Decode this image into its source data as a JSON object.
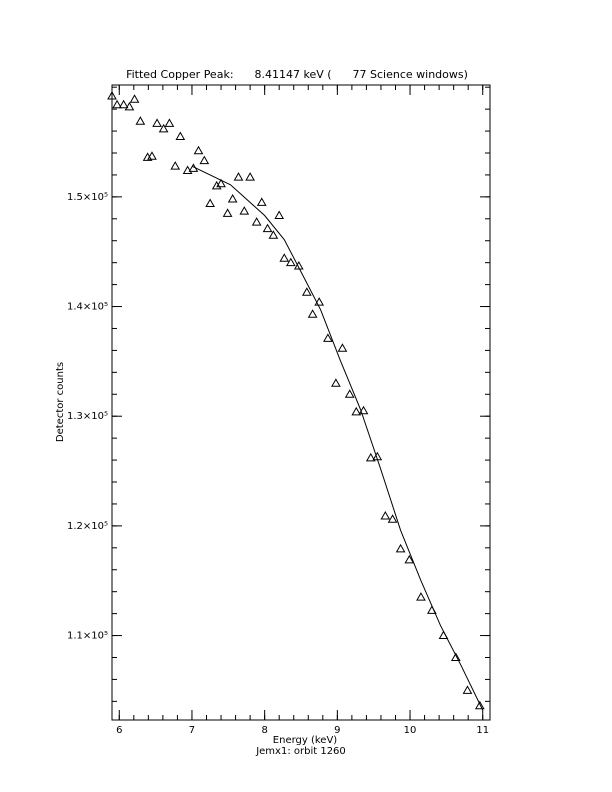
{
  "chart_data": {
    "type": "scatter",
    "title": "Fitted Copper Peak:      8.41147 keV (      77 Science windows)",
    "x_label": "Energy (keV)",
    "subtitle": "Jemx1: orbit 1260",
    "y_label": "Detector counts",
    "xlim": [
      5.9,
      11.1
    ],
    "ylim": [
      102300,
      160200
    ],
    "xticks": [
      6,
      7,
      8,
      9,
      10,
      11
    ],
    "yticks": [
      {
        "value": 110000,
        "label": "1.1×10⁵"
      },
      {
        "value": 120000,
        "label": "1.2×10⁵"
      },
      {
        "value": 130000,
        "label": "1.3×10⁵"
      },
      {
        "value": 140000,
        "label": "1.4×10⁵"
      },
      {
        "value": 150000,
        "label": "1.5×10⁵"
      }
    ],
    "xminor": 5,
    "yminor": 5,
    "series": [
      {
        "type": "scatter",
        "color": "#000000",
        "x": [
          5.9,
          5.97,
          6.06,
          6.14,
          6.21,
          6.29,
          6.39,
          6.45,
          6.52,
          6.61,
          6.69,
          6.77,
          6.84,
          6.94,
          7.02,
          7.09,
          7.17,
          7.25,
          7.34,
          7.4,
          7.49,
          7.56,
          7.64,
          7.72,
          7.8,
          7.89,
          7.96,
          8.04,
          8.12,
          8.2,
          8.27,
          8.36,
          8.47,
          8.58,
          8.66,
          8.75,
          8.87,
          8.98,
          9.07,
          9.17,
          9.26,
          9.36,
          9.46,
          9.55,
          9.66,
          9.76,
          9.87,
          9.99,
          10.15,
          10.3,
          10.46,
          10.63,
          10.79,
          10.96
        ],
        "values": [
          159200,
          158400,
          158400,
          158200,
          158900,
          156900,
          153600,
          153700,
          156700,
          156200,
          156700,
          152800,
          155500,
          152400,
          152600,
          154200,
          153300,
          149400,
          151000,
          151200,
          148500,
          149800,
          151800,
          148700,
          151800,
          147700,
          149500,
          147100,
          146500,
          148300,
          144400,
          144000,
          143700,
          141300,
          139300,
          140400,
          137100,
          133000,
          136200,
          132000,
          130400,
          130500,
          126200,
          126300,
          120900,
          120600,
          117900,
          116900,
          113500,
          112300,
          110000,
          108000,
          105000,
          103600
        ]
      },
      {
        "type": "line",
        "color": "#000000",
        "x": [
          7.0,
          7.53,
          8.0,
          8.27,
          8.49,
          8.77,
          9.04,
          9.32,
          9.6,
          9.87,
          10.15,
          10.42,
          10.7,
          11.0
        ],
        "values": [
          152800,
          151100,
          148300,
          146100,
          143300,
          139700,
          135100,
          130600,
          125100,
          119600,
          115000,
          110900,
          107300,
          103200
        ]
      }
    ]
  }
}
